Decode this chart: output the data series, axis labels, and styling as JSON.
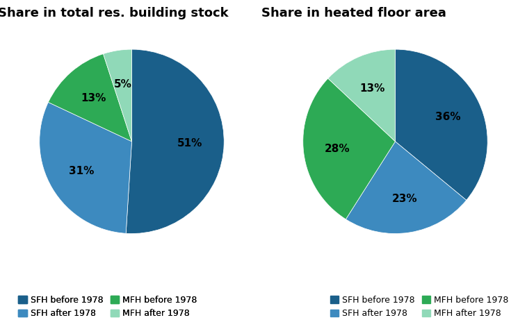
{
  "chart1_title": "Share in total res. building stock",
  "chart2_title": "Share in heated floor area",
  "chart1_values": [
    51,
    31,
    13,
    5
  ],
  "chart2_values": [
    36,
    23,
    28,
    13
  ],
  "chart1_labels": [
    "51%",
    "31%",
    "13%",
    "5%"
  ],
  "chart2_labels": [
    "36%",
    "23%",
    "28%",
    "13%"
  ],
  "color_SFH_before": "#1a5f8a",
  "color_SFH_after": "#3d8abf",
  "color_MFH_before": "#2daa55",
  "color_MFH_after": "#90d9b8",
  "legend_labels": [
    "SFH before 1978",
    "SFH after 1978",
    "MFH before 1978",
    "MFH after 1978"
  ],
  "startangle": 90,
  "label_fontsize": 11,
  "title_fontsize": 13,
  "legend_fontsize": 9,
  "background_color": "#ffffff"
}
